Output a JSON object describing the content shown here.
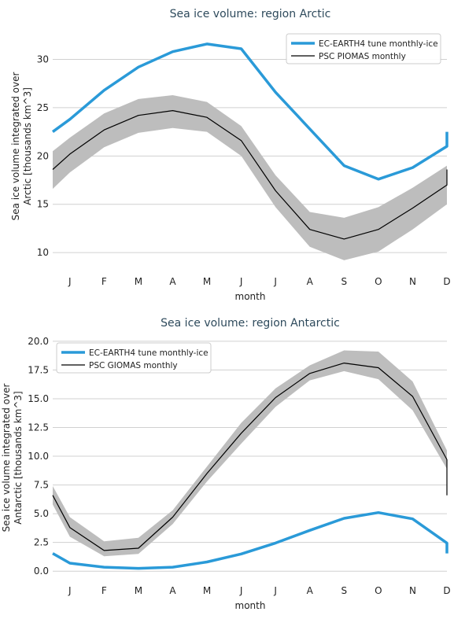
{
  "chart_data": [
    {
      "type": "line",
      "title": "Sea ice volume: region Arctic",
      "xlabel": "month",
      "ylabel_lines": [
        "Sea ice volume integrated over",
        "Arctic [thousands km^3]"
      ],
      "categories": [
        "J",
        "F",
        "M",
        "A",
        "M",
        "J",
        "J",
        "A",
        "S",
        "O",
        "N",
        "D"
      ],
      "ylim": [
        8.3,
        33.3
      ],
      "yticks": [
        10,
        15,
        20,
        25,
        30
      ],
      "ytick_labels": [
        "10",
        "15",
        "20",
        "25",
        "30"
      ],
      "grid": true,
      "legend_position": "top-right",
      "series": [
        {
          "name": "EC-EARTH4 tune monthly-ice",
          "color": "#2a9ad8",
          "values": [
            23.8,
            26.8,
            29.2,
            30.8,
            31.6,
            31.1,
            26.6,
            22.8,
            19.0,
            17.6,
            18.8,
            21.0
          ],
          "wrap": 22.5
        },
        {
          "name": "PSC PIOMAS monthly",
          "color": "#000000",
          "values": [
            20.2,
            22.7,
            24.2,
            24.7,
            24.0,
            21.6,
            16.4,
            12.4,
            11.4,
            12.4,
            14.6,
            17.0
          ],
          "wrap": 18.6,
          "band_upper": [
            21.9,
            24.4,
            25.9,
            26.3,
            25.6,
            23.1,
            18.0,
            14.2,
            13.6,
            14.7,
            16.7,
            19.0
          ],
          "band_lower": [
            18.3,
            20.9,
            22.4,
            22.9,
            22.5,
            20.0,
            14.7,
            10.6,
            9.2,
            10.1,
            12.4,
            15.0
          ],
          "band_wrap": [
            20.5,
            16.6
          ],
          "band_color": "#bdbdbd"
        }
      ]
    },
    {
      "type": "line",
      "title": "Sea ice volume: region Antarctic",
      "xlabel": "month",
      "ylabel_lines": [
        "Sea ice volume integrated over",
        "Antarctic [thousands km^3]"
      ],
      "categories": [
        "J",
        "F",
        "M",
        "A",
        "M",
        "J",
        "J",
        "A",
        "S",
        "O",
        "N",
        "D"
      ],
      "ylim": [
        -0.6,
        20.4
      ],
      "yticks": [
        0,
        2.5,
        5,
        7.5,
        10,
        12.5,
        15,
        17.5,
        20
      ],
      "ytick_labels": [
        "0.0",
        "2.5",
        "5.0",
        "7.5",
        "10.0",
        "12.5",
        "15.0",
        "17.5",
        "20.0"
      ],
      "grid": true,
      "legend_position": "top-left",
      "series": [
        {
          "name": "EC-EARTH4 tune monthly-ice",
          "color": "#2a9ad8",
          "values": [
            0.7,
            0.35,
            0.25,
            0.35,
            0.8,
            1.5,
            2.45,
            3.55,
            4.6,
            5.1,
            4.55,
            2.45
          ],
          "wrap": 1.55
        },
        {
          "name": "PSC GIOMAS monthly",
          "color": "#000000",
          "values": [
            3.8,
            1.8,
            2.0,
            4.7,
            8.5,
            12.0,
            15.1,
            17.2,
            18.1,
            17.7,
            15.2,
            9.7
          ],
          "wrap": 6.6,
          "band_upper": [
            4.7,
            2.6,
            2.9,
            5.3,
            9.1,
            12.9,
            15.9,
            17.9,
            19.2,
            19.1,
            16.5,
            10.5
          ],
          "band_lower": [
            3.0,
            1.3,
            1.5,
            4.1,
            7.8,
            11.1,
            14.3,
            16.6,
            17.4,
            16.7,
            14.0,
            8.9
          ],
          "band_wrap": [
            7.4,
            5.8
          ],
          "band_color": "#bdbdbd"
        }
      ]
    }
  ]
}
